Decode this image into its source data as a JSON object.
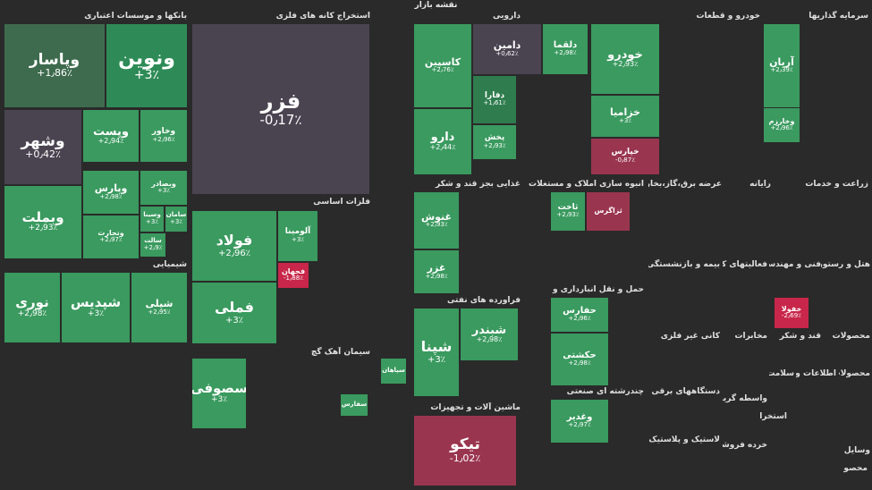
{
  "header": {
    "title": "نقشه بازار"
  },
  "palette": {
    "strong_green": "#2e8b57",
    "green": "#3a9a5f",
    "mid_green": "#2f7d4e",
    "muted_green": "#3e6b4e",
    "neutral": "#4a4350",
    "dark": "#3a3a3a",
    "red": "#9a3550",
    "strong_red": "#c8264a"
  },
  "sectors": [
    {
      "name": "بانکها و موسسات اعتباری",
      "key": "banks"
    },
    {
      "name": "استخراج کانه های فلزی",
      "key": "mining"
    },
    {
      "name": "دارویی",
      "key": "pharma"
    },
    {
      "name": "خودرو و قطعات",
      "key": "auto"
    },
    {
      "name": "سرمایه گذاریها",
      "key": "invest"
    },
    {
      "name": "فلزات اساسی",
      "key": "metals"
    },
    {
      "name": "غذایی بجز قند و شکر",
      "key": "food"
    },
    {
      "name": "انبوه سازی املاک و مستغلات",
      "key": "realestate"
    },
    {
      "name": "عرضه برق،گاز،بخار و آب",
      "key": "power"
    },
    {
      "name": "رایانه",
      "key": "computer"
    },
    {
      "name": "زراعت و خدمات",
      "key": "agri"
    },
    {
      "name": "شیمیایی",
      "key": "chem"
    },
    {
      "name": "فراورده های نفتی",
      "key": "oil"
    },
    {
      "name": "حمل و نقل انبارداری و",
      "key": "transport"
    },
    {
      "name": "بیمه و بازنشستگی",
      "key": "insurance"
    },
    {
      "name": "فعالیتهای کمکی",
      "key": "aux"
    },
    {
      "name": "فنی و مهندسی",
      "key": "eng"
    },
    {
      "name": "هتل و رستوران",
      "key": "hotel"
    },
    {
      "name": "سیمان آهک گچ",
      "key": "cement"
    },
    {
      "name": "کانی غیر فلزی",
      "key": "nonmetal"
    },
    {
      "name": "مخابرات",
      "key": "telecom"
    },
    {
      "name": "قند و شکر",
      "key": "sugar"
    },
    {
      "name": "محصولات",
      "key": "products"
    },
    {
      "name": "دستگاههای برقی",
      "key": "electric"
    },
    {
      "name": "اطلاعات و ا",
      "key": "it"
    },
    {
      "name": "محصولات",
      "key": "products2"
    },
    {
      "name": "چندرشته ای صنعتی",
      "key": "multi"
    },
    {
      "name": "واسطه گریهای",
      "key": "intermed"
    },
    {
      "name": "ماشین آلات و تجهیزات",
      "key": "machinery"
    },
    {
      "name": "لاستیک و پلاستیک",
      "key": "rubber"
    },
    {
      "name": "خرده فروشی",
      "key": "retail"
    },
    {
      "name": "سلامت",
      "key": "health"
    },
    {
      "name": "استخراج",
      "key": "extract"
    },
    {
      "name": "وسایل",
      "key": "vehicles"
    },
    {
      "name": "محصو",
      "key": "misc"
    }
  ],
  "tiles": [
    {
      "sym": "ونوین",
      "chg": "+3٪",
      "c": "strong_green"
    },
    {
      "sym": "وپاسار",
      "chg": "+1٫86٪",
      "c": "muted_green"
    },
    {
      "sym": "وشهر",
      "chg": "+0٫42٪",
      "c": "neutral"
    },
    {
      "sym": "وپست",
      "chg": "+2٫94٪",
      "c": "green"
    },
    {
      "sym": "وخاور",
      "chg": "+2٫96٪",
      "c": "green"
    },
    {
      "sym": "وبملت",
      "chg": "+2٫93٪",
      "c": "green"
    },
    {
      "sym": "وپارس",
      "chg": "+2٫98٪",
      "c": "green"
    },
    {
      "sym": "وبصادر",
      "chg": "+3٪",
      "c": "green"
    },
    {
      "sym": "وتجارت",
      "chg": "+2٫97٪",
      "c": "green"
    },
    {
      "sym": "وسینا",
      "chg": "+3٪",
      "c": "green"
    },
    {
      "sym": "سامان",
      "chg": "+3٪",
      "c": "green"
    },
    {
      "sym": "سالت",
      "chg": "+2٫9٪",
      "c": "green"
    },
    {
      "sym": "فزر",
      "chg": "-0٫17٪",
      "c": "neutral"
    },
    {
      "sym": "کاسپین",
      "chg": "+2٫76٪",
      "c": "green"
    },
    {
      "sym": "دامین",
      "chg": "+0٫62٪",
      "c": "neutral"
    },
    {
      "sym": "دلقما",
      "chg": "+2٫98٪",
      "c": "green"
    },
    {
      "sym": "دارو",
      "chg": "+2٫44٪",
      "c": "green"
    },
    {
      "sym": "دفارا",
      "chg": "+1٫61٪",
      "c": "mid_green"
    },
    {
      "sym": "پخش",
      "chg": "+2٫93٪",
      "c": "green"
    },
    {
      "sym": "خودرو",
      "chg": "+2٫93٪",
      "c": "green"
    },
    {
      "sym": "خزامیا",
      "chg": "+3٪",
      "c": "green"
    },
    {
      "sym": "خپارس",
      "chg": "-0٫87٪",
      "c": "red"
    },
    {
      "sym": "آریان",
      "chg": "+2٫39٪",
      "c": "green"
    },
    {
      "sym": "وخارزم",
      "chg": "+2٫96٪",
      "c": "green"
    },
    {
      "sym": "فولاد",
      "chg": "+2٫96٪",
      "c": "green"
    },
    {
      "sym": "فملی",
      "chg": "+3٪",
      "c": "green"
    },
    {
      "sym": "آلومینا",
      "chg": "+3٪",
      "c": "green"
    },
    {
      "sym": "فجهان",
      "chg": "-1٫88٪",
      "c": "strong_red"
    },
    {
      "sym": "غنوش",
      "chg": "+2٫93٪",
      "c": "green"
    },
    {
      "sym": "غزر",
      "chg": "+2٫98٪",
      "c": "green"
    },
    {
      "sym": "ثاخت",
      "chg": "+2٫93٪",
      "c": "green"
    },
    {
      "sym": "ثزاگرس",
      "chg": "",
      "c": "red"
    },
    {
      "sym": "شپنا",
      "chg": "+3٪",
      "c": "green"
    },
    {
      "sym": "شبندر",
      "chg": "+2٫98٪",
      "c": "green"
    },
    {
      "sym": "نوری",
      "chg": "+2٫98٪",
      "c": "green"
    },
    {
      "sym": "شپدیس",
      "chg": "+3٪",
      "c": "green"
    },
    {
      "sym": "شپلی",
      "chg": "+2٫95٪",
      "c": "green"
    },
    {
      "sym": "سصوفی",
      "chg": "+3٪",
      "c": "green"
    },
    {
      "sym": "سفارس",
      "chg": "",
      "c": "green"
    },
    {
      "sym": "سپاهان",
      "chg": "",
      "c": "green"
    },
    {
      "sym": "تیکو",
      "chg": "-1٫02٪",
      "c": "red"
    },
    {
      "sym": "حفارس",
      "chg": "+2٫96٪",
      "c": "green"
    },
    {
      "sym": "حکشتی",
      "chg": "+2٫98٪",
      "c": "green"
    },
    {
      "sym": "وغدیر",
      "chg": "+2٫97٪",
      "c": "green"
    },
    {
      "sym": "خفولا",
      "chg": "-2٫69٪",
      "c": "strong_red"
    }
  ]
}
